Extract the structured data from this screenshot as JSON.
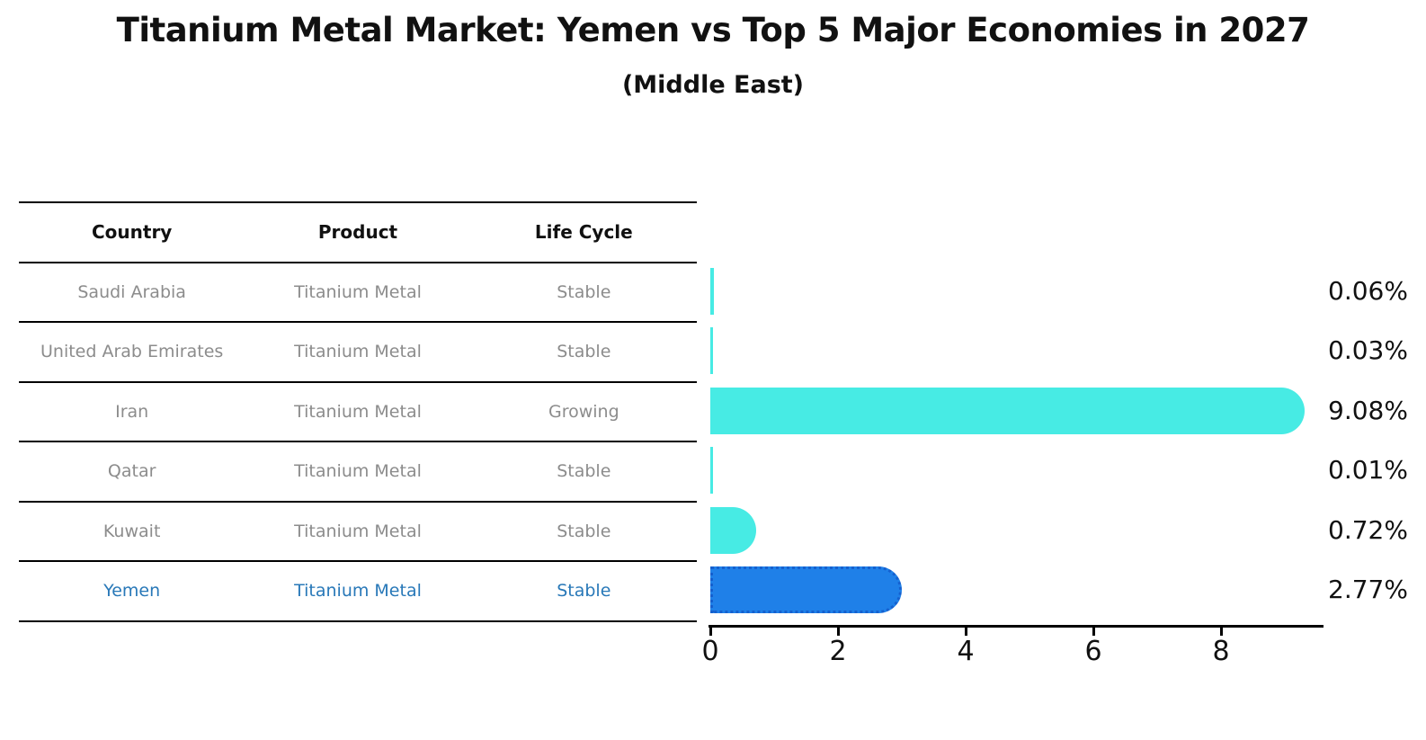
{
  "chart_data": {
    "type": "bar",
    "orientation": "horizontal",
    "title": "Titanium Metal Market: Yemen vs Top 5 Major Economies in 2027",
    "subtitle": "(Middle East)",
    "categories": [
      "Saudi Arabia",
      "United Arab Emirates",
      "Iran",
      "Qatar",
      "Kuwait",
      "Yemen"
    ],
    "values": [
      0.06,
      0.03,
      9.08,
      0.01,
      0.72,
      2.77
    ],
    "value_labels": [
      "0.06%",
      "0.03%",
      "9.08%",
      "0.01%",
      "0.72%",
      "2.77%"
    ],
    "xticks": [
      0,
      2,
      4,
      6,
      8
    ],
    "xlim": [
      0,
      9.6
    ],
    "grid": false,
    "legend": false,
    "highlight_category": "Yemen",
    "bar_color": "#47EBE4",
    "highlight_bar_color": "#1F80E8",
    "highlight_border_color": "#1560CF"
  },
  "table": {
    "headers": [
      "Country",
      "Product",
      "Life Cycle"
    ],
    "rows": [
      {
        "country": "Saudi Arabia",
        "product": "Titanium Metal",
        "life_cycle": "Stable"
      },
      {
        "country": "United Arab Emirates",
        "product": "Titanium Metal",
        "life_cycle": "Stable"
      },
      {
        "country": "Iran",
        "product": "Titanium Metal",
        "life_cycle": "Growing"
      },
      {
        "country": "Qatar",
        "product": "Titanium Metal",
        "life_cycle": "Stable"
      },
      {
        "country": "Kuwait",
        "product": "Titanium Metal",
        "life_cycle": "Stable"
      },
      {
        "country": "Yemen",
        "product": "Titanium Metal",
        "life_cycle": "Stable"
      }
    ],
    "highlight_text_color": "#2878B8",
    "text_color": "#8C8C8C"
  }
}
